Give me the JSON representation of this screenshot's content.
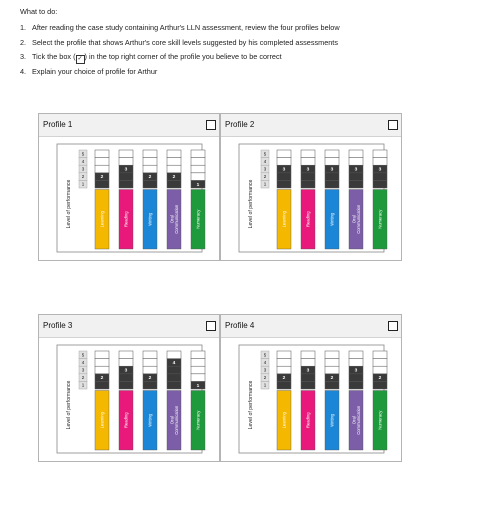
{
  "instructions": {
    "heading": "What to do:",
    "steps": [
      {
        "num": "1.",
        "text": "After reading the case study containing Arthur's LLN assessment, review the four profiles below"
      },
      {
        "num": "2.",
        "text": "Select the profile that shows Arthur's core skill levels suggested by his completed assessments"
      },
      {
        "num": "3.",
        "pre": "Tick the box (",
        "box": "✓",
        "post": ") in the top right corner of the profile you believe to be correct"
      },
      {
        "num": "4.",
        "text": "Explain your choice of profile for Arthur"
      }
    ]
  },
  "chart_data": [
    {
      "type": "bar",
      "title": "Profile 1",
      "ylabel": "Level of performance",
      "levels": [
        "5",
        "4",
        "3",
        "2",
        "1"
      ],
      "categories": [
        "Learning",
        "Reading",
        "Writing",
        "Oral Communication",
        "Numeracy"
      ],
      "values": [
        2,
        3,
        2,
        2,
        1
      ],
      "colors": [
        "#f5b800",
        "#e8197a",
        "#1b86d6",
        "#7b5ea7",
        "#1e9a3c"
      ]
    },
    {
      "type": "bar",
      "title": "Profile 2",
      "ylabel": "Level of performance",
      "levels": [
        "5",
        "4",
        "3",
        "2",
        "1"
      ],
      "categories": [
        "Learning",
        "Reading",
        "Writing",
        "Oral Communication",
        "Numeracy"
      ],
      "values": [
        3,
        3,
        3,
        3,
        3
      ],
      "colors": [
        "#f5b800",
        "#e8197a",
        "#1b86d6",
        "#7b5ea7",
        "#1e9a3c"
      ]
    },
    {
      "type": "bar",
      "title": "Profile 3",
      "ylabel": "Level of performance",
      "levels": [
        "5",
        "4",
        "3",
        "2",
        "1"
      ],
      "categories": [
        "Learning",
        "Reading",
        "Writing",
        "Oral Communication",
        "Numeracy"
      ],
      "values": [
        2,
        3,
        2,
        4,
        1
      ],
      "colors": [
        "#f5b800",
        "#e8197a",
        "#1b86d6",
        "#7b5ea7",
        "#1e9a3c"
      ]
    },
    {
      "type": "bar",
      "title": "Profile 4",
      "ylabel": "Level of performance",
      "levels": [
        "5",
        "4",
        "3",
        "2",
        "1"
      ],
      "categories": [
        "Learning",
        "Reading",
        "Writing",
        "Oral Communication",
        "Numeracy"
      ],
      "values": [
        2,
        3,
        2,
        3,
        2
      ],
      "colors": [
        "#f5b800",
        "#e8197a",
        "#1b86d6",
        "#7b5ea7",
        "#1e9a3c"
      ]
    }
  ]
}
